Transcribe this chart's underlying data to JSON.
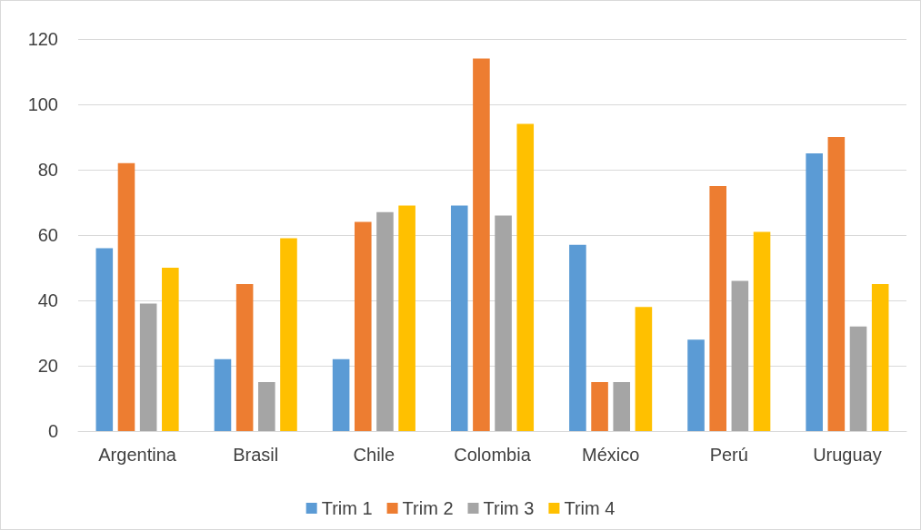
{
  "chart_data": {
    "type": "bar",
    "categories": [
      "Argentina",
      "Brasil",
      "Chile",
      "Colombia",
      "México",
      "Perú",
      "Uruguay"
    ],
    "series": [
      {
        "name": "Trim 1",
        "color": "#5b9bd5",
        "values": [
          56,
          22,
          22,
          69,
          57,
          28,
          85
        ]
      },
      {
        "name": "Trim 2",
        "color": "#ed7d31",
        "values": [
          82,
          45,
          64,
          114,
          15,
          75,
          90
        ]
      },
      {
        "name": "Trim 3",
        "color": "#a5a5a5",
        "values": [
          39,
          15,
          67,
          66,
          15,
          46,
          32
        ]
      },
      {
        "name": "Trim 4",
        "color": "#ffc000",
        "values": [
          50,
          59,
          69,
          94,
          38,
          61,
          45
        ]
      }
    ],
    "ylim": [
      0,
      120
    ],
    "yticks": [
      0,
      20,
      40,
      60,
      80,
      100,
      120
    ],
    "grid": "y",
    "legend": "bottom"
  }
}
